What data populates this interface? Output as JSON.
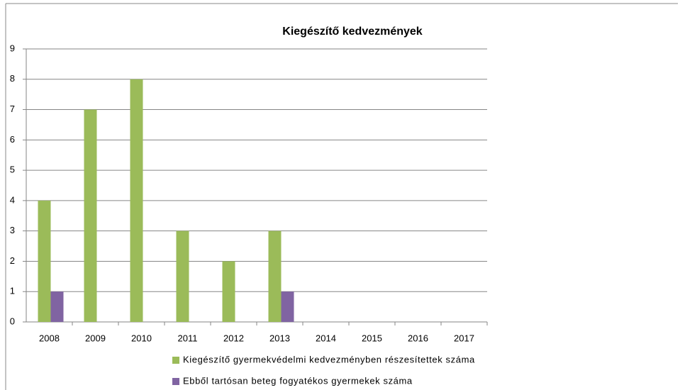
{
  "chart_data": {
    "type": "bar",
    "title": "Kiegészítő kedvezmények",
    "categories": [
      "2008",
      "2009",
      "2010",
      "2011",
      "2012",
      "2013",
      "2014",
      "2015",
      "2016",
      "2017"
    ],
    "series": [
      {
        "name": "Kiegészítő gyermekvédelmi kedvezményben részesítettek száma",
        "color": "#9bbb59",
        "values": [
          4,
          7,
          8,
          3,
          2,
          3,
          null,
          null,
          null,
          null
        ]
      },
      {
        "name": "Ebből tartósan beteg fogyatékos gyermekek száma",
        "color": "#8064a2",
        "values": [
          1,
          0,
          0,
          0,
          0,
          1,
          null,
          null,
          null,
          null
        ]
      }
    ],
    "ylim": [
      0,
      9
    ],
    "yticks": [
      0,
      1,
      2,
      3,
      4,
      5,
      6,
      7,
      8,
      9
    ],
    "grid": true,
    "legend": "bottom"
  }
}
